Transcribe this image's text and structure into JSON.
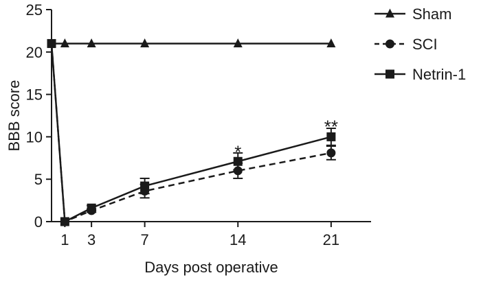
{
  "chart_data": {
    "type": "line",
    "title": "",
    "xlabel": "Days post operative",
    "ylabel": "BBB score",
    "xlim": [
      0,
      24
    ],
    "ylim": [
      0,
      25
    ],
    "xticks": [
      1,
      3,
      7,
      14,
      21
    ],
    "yticks": [
      0,
      5,
      10,
      15,
      20,
      25
    ],
    "grid": false,
    "legend_position": "right",
    "series": [
      {
        "name": "Sham",
        "marker": "triangle",
        "line": "solid",
        "x": [
          0,
          1,
          3,
          7,
          14,
          21
        ],
        "y": [
          21,
          21,
          21,
          21,
          21,
          21
        ],
        "err": [
          0,
          0,
          0,
          0,
          0,
          0
        ]
      },
      {
        "name": "SCI",
        "marker": "circle",
        "line": "dashed",
        "x": [
          0,
          1,
          3,
          7,
          14,
          21
        ],
        "y": [
          21,
          0,
          1.3,
          3.6,
          6.0,
          8.1
        ],
        "err": [
          0,
          0,
          0.2,
          0.8,
          0.9,
          0.8
        ]
      },
      {
        "name": "Netrin-1",
        "marker": "square",
        "line": "solid",
        "x": [
          0,
          1,
          3,
          7,
          14,
          21
        ],
        "y": [
          21,
          0,
          1.6,
          4.2,
          7.1,
          10.0
        ],
        "err": [
          0,
          0,
          0.3,
          0.9,
          1.0,
          1.0
        ]
      }
    ],
    "annotations": [
      {
        "text": "*",
        "x": 14,
        "y": 8.6
      },
      {
        "text": "**",
        "x": 21,
        "y": 11.6
      }
    ],
    "colors": {
      "axis": "#1a1a1a",
      "series": "#1a1a1a"
    }
  }
}
